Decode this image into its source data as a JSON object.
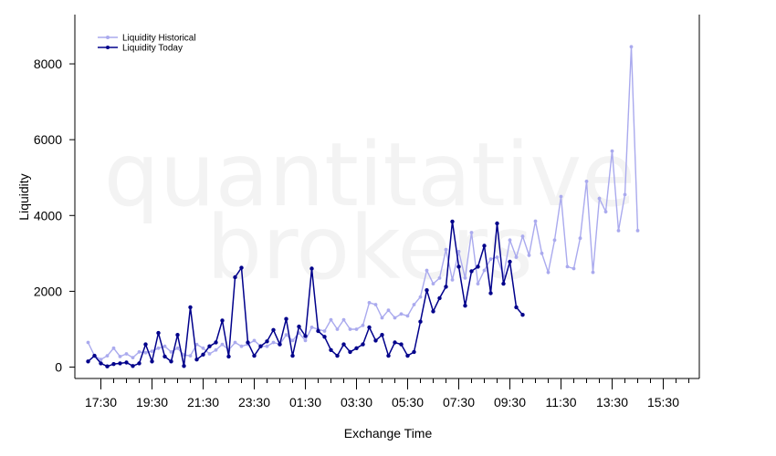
{
  "chart_data": {
    "type": "line",
    "title": "",
    "xlabel": "Exchange Time",
    "ylabel": "Liquidity",
    "watermark": [
      "quantitative",
      "brokers"
    ],
    "ylim": [
      -300,
      9300
    ],
    "yticks": [
      0,
      2000,
      4000,
      6000,
      8000
    ],
    "xticks": [
      "17:30",
      "19:30",
      "21:30",
      "23:30",
      "01:30",
      "03:30",
      "05:30",
      "07:30",
      "09:30",
      "11:30",
      "13:30",
      "15:30"
    ],
    "grid": false,
    "legend_position": "top-left",
    "series": [
      {
        "name": "Liquidity Historical",
        "color": "#aaaaee",
        "x_start": "17:00",
        "x_step_minutes": 15,
        "values": [
          650,
          300,
          200,
          300,
          500,
          280,
          350,
          250,
          400,
          380,
          420,
          500,
          550,
          400,
          500,
          320,
          300,
          600,
          500,
          350,
          450,
          600,
          450,
          650,
          550,
          600,
          700,
          550,
          550,
          650,
          600,
          850,
          700,
          900,
          700,
          1050,
          1000,
          950,
          1250,
          1000,
          1250,
          1000,
          1000,
          1100,
          1700,
          1650,
          1300,
          1500,
          1300,
          1400,
          1350,
          1650,
          1850,
          2550,
          2200,
          2350,
          3100,
          2300,
          3050,
          2350,
          3550,
          2200,
          2550,
          2850,
          2900,
          2400,
          3350,
          2900,
          3450,
          2950,
          3850,
          3000,
          2500,
          3350,
          4500,
          2650,
          2600,
          3400,
          4900,
          2500,
          4450,
          4100,
          5700,
          3600,
          4550,
          8450,
          3600
        ]
      },
      {
        "name": "Liquidity Today",
        "color": "#00008b",
        "x_start": "17:00",
        "x_step_minutes": 15,
        "values": [
          150,
          300,
          100,
          20,
          80,
          100,
          120,
          30,
          100,
          600,
          150,
          900,
          280,
          150,
          850,
          30,
          1580,
          200,
          330,
          550,
          650,
          1230,
          280,
          2370,
          2620,
          650,
          300,
          550,
          680,
          980,
          600,
          1270,
          300,
          1070,
          820,
          2600,
          950,
          800,
          450,
          300,
          600,
          400,
          500,
          600,
          1050,
          700,
          850,
          300,
          650,
          600,
          300,
          400,
          1200,
          2030,
          1470,
          1820,
          2120,
          3840,
          2650,
          1620,
          2530,
          2650,
          3200,
          1950,
          3790,
          2200,
          2780,
          1580,
          1380
        ]
      }
    ]
  }
}
